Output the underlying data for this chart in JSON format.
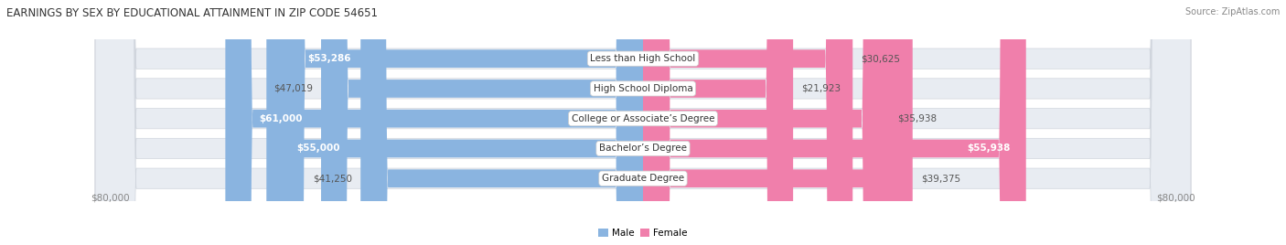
{
  "title": "EARNINGS BY SEX BY EDUCATIONAL ATTAINMENT IN ZIP CODE 54651",
  "source": "Source: ZipAtlas.com",
  "categories": [
    "Less than High School",
    "High School Diploma",
    "College or Associate’s Degree",
    "Bachelor’s Degree",
    "Graduate Degree"
  ],
  "male_values": [
    53286,
    47019,
    61000,
    55000,
    41250
  ],
  "female_values": [
    30625,
    21923,
    35938,
    55938,
    39375
  ],
  "male_color": "#8ab4e0",
  "female_color": "#f07fab",
  "max_scale": 80000,
  "bg_color": "#ffffff",
  "row_bg_color": "#e8ecf2",
  "title_fontsize": 8.5,
  "source_fontsize": 7.0,
  "label_fontsize": 7.5,
  "value_fontsize": 7.5
}
